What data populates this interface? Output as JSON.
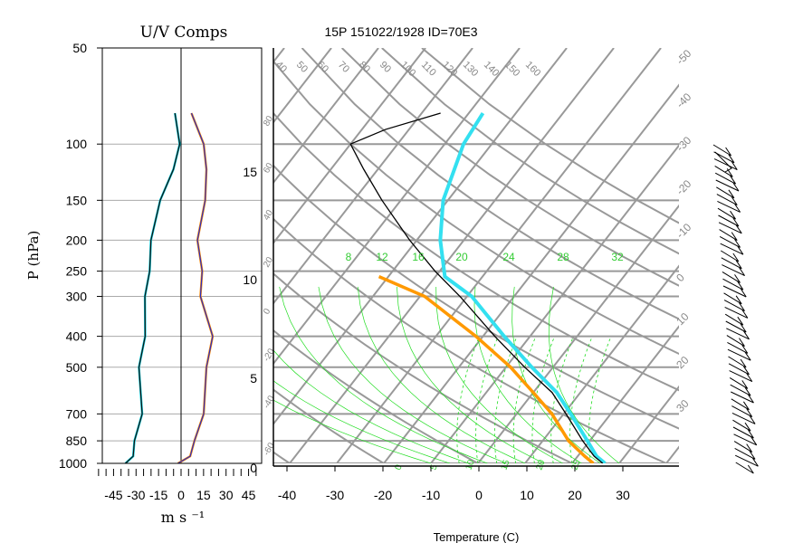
{
  "left_panel": {
    "title": "U/V Comps",
    "ylabel": "P (hPa)",
    "xlabel": "m s ⁻¹",
    "pressure_ticks": [
      50,
      100,
      150,
      200,
      250,
      300,
      400,
      500,
      700,
      850,
      1000
    ],
    "x_ticks": [
      -45,
      -30,
      -15,
      0,
      15,
      30,
      45
    ],
    "xlim": [
      -55,
      50
    ],
    "ylim": [
      1000,
      50
    ],
    "colors": {
      "u": "#00c8d8",
      "v": "#ff8c00",
      "u_profile": "#111111",
      "v_profile": "#2b2bbf",
      "grid": "#aaaaaa"
    }
  },
  "main_panel": {
    "title": "15P 151022/1928 ID=70E3",
    "xlabel": "Temperature (C)",
    "x_ticks": [
      -40,
      -30,
      -20,
      -10,
      0,
      10,
      20,
      30
    ],
    "height_ticks": [
      0,
      5,
      10,
      15
    ],
    "mixing_ratio_labels": [
      "8",
      "12",
      "16",
      "20",
      "24",
      "28",
      "32"
    ],
    "isotherm_labels": [
      "40",
      "50",
      "60",
      "70",
      "80",
      "90",
      "100",
      "110",
      "120",
      "130",
      "140",
      "150",
      "160"
    ],
    "right_labels": [
      "-50",
      "-40",
      "-30",
      "-20",
      "-10",
      "0",
      "10",
      "20",
      "30"
    ],
    "left_labels": [
      "80",
      "60",
      "40",
      "20",
      "0",
      "-20",
      "-40",
      "-60"
    ],
    "bottom_labels": [
      "0",
      "5",
      "10",
      "15",
      "20",
      "25"
    ],
    "colors": {
      "grid": "#999999",
      "mixing_ratio": "#22dd22",
      "temperature": "#000000",
      "dewpoint": "#ff9900",
      "parcel": "#33e0f0",
      "text_green": "#33cc33"
    }
  },
  "chart_data": [
    {
      "type": "line",
      "title": "U/V Comps",
      "xlabel": "m s ⁻¹",
      "ylabel": "P (hPa)",
      "xlim": [
        -55,
        50
      ],
      "ylim": [
        1000,
        50
      ],
      "y_scale": "log",
      "grid": true,
      "series": [
        {
          "pressure": [
            1000,
            950,
            850,
            700,
            500,
            400,
            300,
            250,
            200,
            150,
            120,
            100,
            80
          ],
          "values": [
            -36,
            -33,
            -30,
            -27,
            -27,
            -25,
            -23,
            -22,
            -19,
            -15,
            -4,
            -2,
            -3
          ]
        },
        {
          "pressure": [
            1000,
            950,
            850,
            700,
            500,
            400,
            300,
            250,
            200,
            150,
            120,
            100,
            80
          ],
          "values": [
            -1,
            5,
            10,
            14,
            18,
            20,
            14,
            13,
            12,
            15,
            18,
            14,
            8
          ]
        }
      ]
    },
    {
      "type": "line",
      "title": "15P 151022/1928 ID=70E3",
      "xlabel": "Temperature (C)",
      "xlim": [
        -43,
        40
      ],
      "ylim": [
        1000,
        50
      ],
      "y_scale": "log",
      "grid": true,
      "series": [
        {
          "pressure": [
            1000,
            950,
            850,
            700,
            600,
            500,
            400,
            300,
            250,
            200,
            150,
            120,
            100,
            90,
            80
          ],
          "values": [
            26.5,
            23.5,
            18.5,
            10.5,
            4,
            -6,
            -17.5,
            -31.5,
            -41,
            -51.5,
            -64,
            -73,
            -80,
            -75,
            -66
          ]
        },
        {
          "pressure": [
            1000,
            950,
            850,
            700,
            600,
            500,
            400,
            300,
            260
          ],
          "values": [
            24.5,
            21.5,
            15.5,
            7.5,
            0,
            -9,
            -21.5,
            -39,
            -52
          ]
        },
        {
          "pressure": [
            1000,
            950,
            850,
            700,
            600,
            500,
            400,
            300,
            260,
            200,
            150,
            100,
            80
          ],
          "values": [
            27,
            24,
            19.5,
            11.5,
            5,
            -4.5,
            -15.5,
            -29,
            -38,
            -45,
            -51,
            -56,
            -57
          ]
        }
      ]
    }
  ]
}
